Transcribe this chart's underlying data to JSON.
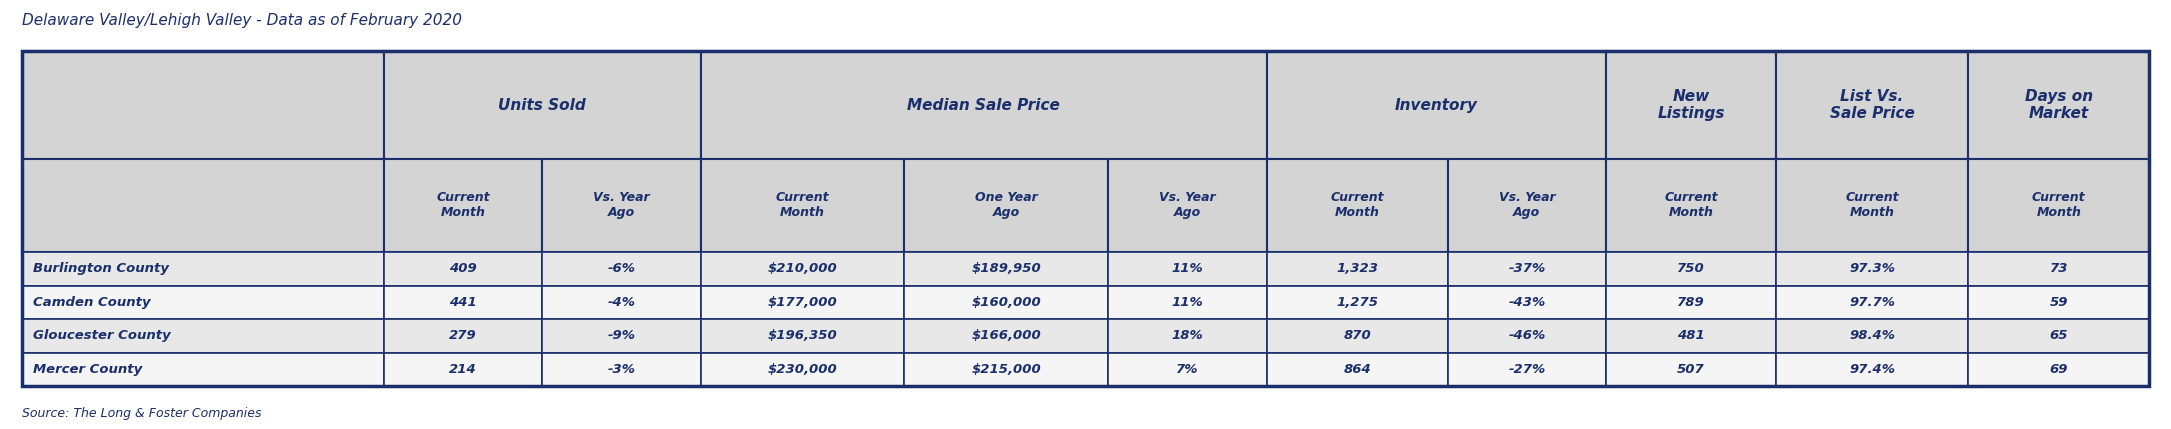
{
  "title": "Delaware Valley/Lehigh Valley - Data as of February 2020",
  "source": "Source: The Long & Foster Companies",
  "header_groups": [
    {
      "label": "Units Sold",
      "span": 2
    },
    {
      "label": "Median Sale Price",
      "span": 3
    },
    {
      "label": "Inventory",
      "span": 2
    },
    {
      "label": "New\nListings",
      "span": 1
    },
    {
      "label": "List Vs.\nSale Price",
      "span": 1
    },
    {
      "label": "Days on\nMarket",
      "span": 1
    }
  ],
  "sub_headers": [
    "Current\nMonth",
    "Vs. Year\nAgo",
    "Current\nMonth",
    "One Year\nAgo",
    "Vs. Year\nAgo",
    "Current\nMonth",
    "Vs. Year\nAgo",
    "Current\nMonth",
    "Current\nMonth",
    "Current\nMonth"
  ],
  "row_labels": [
    "Burlington County",
    "Camden County",
    "Gloucester County",
    "Mercer County"
  ],
  "rows": [
    [
      "409",
      "-6%",
      "$210,000",
      "$189,950",
      "11%",
      "1,323",
      "-37%",
      "750",
      "97.3%",
      "73"
    ],
    [
      "441",
      "-4%",
      "$177,000",
      "$160,000",
      "11%",
      "1,275",
      "-43%",
      "789",
      "97.7%",
      "59"
    ],
    [
      "279",
      "-9%",
      "$196,350",
      "$166,000",
      "18%",
      "870",
      "-46%",
      "481",
      "98.4%",
      "65"
    ],
    [
      "214",
      "-3%",
      "$230,000",
      "$215,000",
      "7%",
      "864",
      "-27%",
      "507",
      "97.4%",
      "69"
    ]
  ],
  "dark_blue": "#1a2f6b",
  "light_gray": "#d4d4d4",
  "white": "#ffffff",
  "row_alt1": "#e8e8e8",
  "row_alt2": "#f5f5f5",
  "header_text_color": "#1a2f6b",
  "data_text_color": "#1a2f6b",
  "border_color": "#1a2f6b",
  "col_widths": [
    1.6,
    0.7,
    0.7,
    0.9,
    0.9,
    0.7,
    0.8,
    0.7,
    0.75,
    0.85,
    0.8
  ],
  "group_spans": [
    2,
    3,
    2,
    1,
    1,
    1
  ],
  "group_start_cols": [
    1,
    3,
    6,
    8,
    9,
    10
  ]
}
